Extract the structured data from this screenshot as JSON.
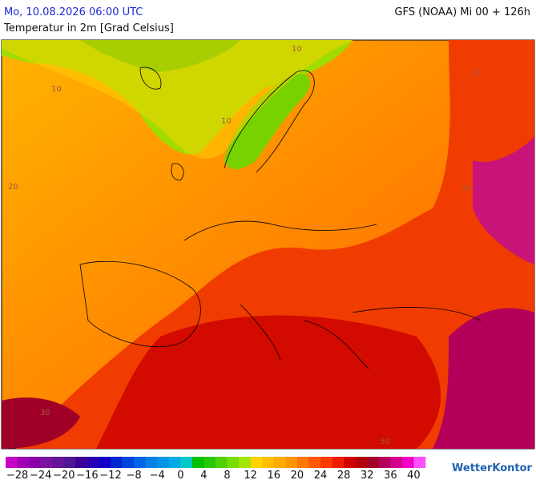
{
  "header": {
    "datetime": "Mo, 10.08.2026 06:00 UTC",
    "model": "GFS (NOAA) Mi 00 + 126h",
    "parameter": "Temperatur in 2m [Grad Celsius]"
  },
  "map": {
    "contour_labels": [
      "10",
      "10",
      "10",
      "20",
      "20",
      "30",
      "30",
      "30"
    ]
  },
  "legend": {
    "labels": [
      "−28",
      "−24",
      "−20",
      "−16",
      "−12",
      "−8",
      "−4",
      "0",
      "4",
      "8",
      "12",
      "16",
      "20",
      "24",
      "28",
      "32",
      "36",
      "40"
    ],
    "colors": [
      "#c800c8",
      "#a000b4",
      "#8c00aa",
      "#7814a0",
      "#64149b",
      "#501496",
      "#3c0096",
      "#2800b4",
      "#1400c8",
      "#0028d2",
      "#0046dc",
      "#0064e6",
      "#0082e6",
      "#0096e6",
      "#00aae6",
      "#00c8c8",
      "#00be00",
      "#28c800",
      "#50d200",
      "#78dc00",
      "#a0e600",
      "#ffd200",
      "#ffbe00",
      "#ffaa00",
      "#ff9600",
      "#ff7800",
      "#ff5a00",
      "#ff3c00",
      "#f01e00",
      "#d20000",
      "#b4000a",
      "#a00028",
      "#b4005a",
      "#d2008c",
      "#f000c8",
      "#ff50ff"
    ]
  },
  "logo": "WetterKontor"
}
